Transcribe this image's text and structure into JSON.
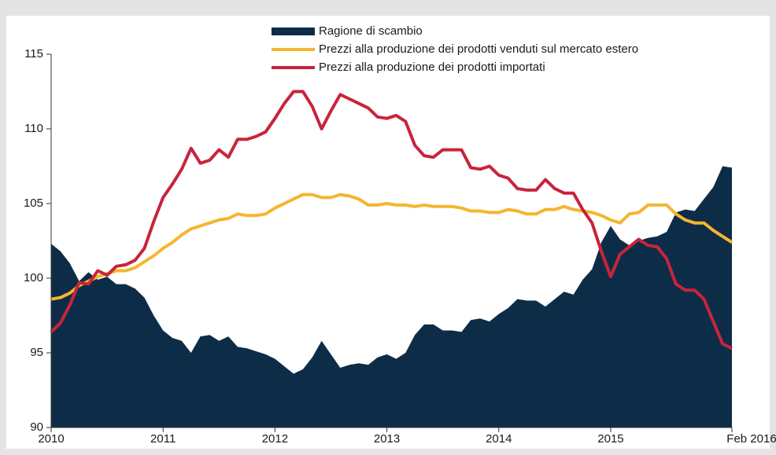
{
  "chart_data": {
    "type": "line",
    "legend": "top",
    "categories": [
      "2010",
      null,
      null,
      null,
      null,
      null,
      null,
      null,
      null,
      null,
      null,
      null,
      "2011",
      null,
      null,
      null,
      null,
      null,
      null,
      null,
      null,
      null,
      null,
      null,
      "2012",
      null,
      null,
      null,
      null,
      null,
      null,
      null,
      null,
      null,
      null,
      null,
      "2013",
      null,
      null,
      null,
      null,
      null,
      null,
      null,
      null,
      null,
      null,
      null,
      "2014",
      null,
      null,
      null,
      null,
      null,
      null,
      null,
      null,
      null,
      null,
      null,
      "2015",
      null,
      null,
      null,
      null,
      null,
      null,
      null,
      null,
      null,
      null,
      null,
      null,
      "Feb 2016"
    ],
    "series": [
      {
        "name": "Ragione di scambio",
        "type": "area",
        "color": "#0d2c47",
        "values": [
          102.3,
          101.8,
          101.0,
          99.8,
          100.4,
          99.9,
          100.1,
          99.6,
          99.6,
          99.3,
          98.7,
          97.5,
          96.5,
          96.0,
          95.8,
          95.0,
          96.1,
          96.2,
          95.8,
          96.1,
          95.4,
          95.3,
          95.1,
          94.9,
          94.6,
          94.1,
          93.6,
          93.9,
          94.7,
          95.8,
          94.9,
          94.0,
          94.2,
          94.3,
          94.2,
          94.7,
          94.9,
          94.6,
          95.0,
          96.2,
          96.9,
          96.9,
          96.5,
          96.5,
          96.4,
          97.2,
          97.3,
          97.1,
          97.6,
          98.0,
          98.6,
          98.5,
          98.5,
          98.1,
          98.6,
          99.1,
          98.9,
          99.9,
          100.6,
          102.4,
          103.5,
          102.6,
          102.2,
          102.5,
          102.7,
          102.8,
          103.1,
          104.4,
          104.6,
          104.5,
          105.3,
          106.1,
          107.5,
          107.4
        ]
      },
      {
        "name": "Prezzi alla produzione dei prodotti venduti sul mercato estero",
        "type": "line",
        "color": "#f5b52e",
        "values": [
          98.6,
          98.7,
          99.0,
          99.5,
          99.8,
          100.1,
          100.3,
          100.5,
          100.5,
          100.7,
          101.1,
          101.5,
          102.0,
          102.4,
          102.9,
          103.3,
          103.5,
          103.7,
          103.9,
          104.0,
          104.3,
          104.2,
          104.2,
          104.3,
          104.7,
          105.0,
          105.3,
          105.6,
          105.6,
          105.4,
          105.4,
          105.6,
          105.5,
          105.3,
          104.9,
          104.9,
          105.0,
          104.9,
          104.9,
          104.8,
          104.9,
          104.8,
          104.8,
          104.8,
          104.7,
          104.5,
          104.5,
          104.4,
          104.4,
          104.6,
          104.5,
          104.3,
          104.3,
          104.6,
          104.6,
          104.8,
          104.6,
          104.5,
          104.4,
          104.2,
          103.9,
          103.7,
          104.3,
          104.4,
          104.9,
          104.9,
          104.9,
          104.3,
          103.9,
          103.7,
          103.7,
          103.2,
          102.8,
          102.4
        ]
      },
      {
        "name": "Prezzi alla produzione dei prodotti importati",
        "type": "line",
        "color": "#c8243c",
        "values": [
          96.4,
          97.0,
          98.2,
          99.7,
          99.6,
          100.5,
          100.2,
          100.8,
          100.9,
          101.2,
          102.0,
          103.8,
          105.4,
          106.3,
          107.3,
          108.7,
          107.7,
          107.9,
          108.6,
          108.1,
          109.3,
          109.3,
          109.5,
          109.8,
          110.7,
          111.7,
          112.5,
          112.5,
          111.5,
          110.0,
          111.2,
          112.3,
          112.0,
          111.7,
          111.4,
          110.8,
          110.7,
          110.9,
          110.5,
          108.9,
          108.2,
          108.1,
          108.6,
          108.6,
          108.6,
          107.4,
          107.3,
          107.5,
          106.9,
          106.7,
          106.0,
          105.9,
          105.9,
          106.6,
          106.0,
          105.7,
          105.7,
          104.6,
          103.7,
          101.8,
          100.1,
          101.6,
          102.1,
          102.6,
          102.2,
          102.1,
          101.3,
          99.6,
          99.2,
          99.2,
          98.6,
          97.1,
          95.6,
          95.3
        ]
      }
    ],
    "ylim": [
      90,
      115
    ],
    "yticks": [
      90,
      95,
      100,
      105,
      110,
      115
    ]
  }
}
